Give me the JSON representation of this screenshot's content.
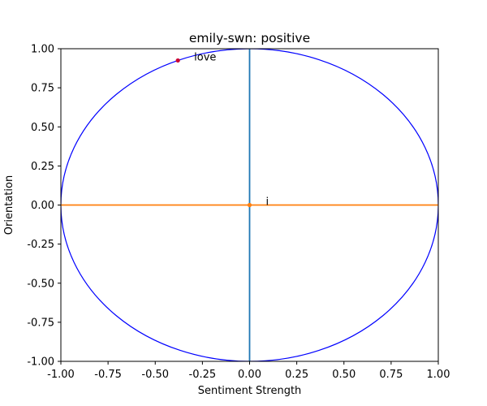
{
  "chart_data": {
    "type": "scatter",
    "title": "emily-swn: positive",
    "xlabel": "Sentiment Strength",
    "ylabel": "Orientation",
    "xlim": [
      -1.0,
      1.0
    ],
    "ylim": [
      -1.0,
      1.0
    ],
    "xticks": [
      "-1.00",
      "-0.75",
      "-0.50",
      "-0.25",
      "0.00",
      "0.25",
      "0.50",
      "0.75",
      "1.00"
    ],
    "yticks": [
      "-1.00",
      "-0.75",
      "-0.50",
      "-0.25",
      "0.00",
      "0.25",
      "0.50",
      "0.75",
      "1.00"
    ],
    "unit_circle": {
      "center": [
        0,
        0
      ],
      "radius": 1,
      "color": "#0000ff"
    },
    "reference_lines": [
      {
        "orientation": "vertical",
        "x": 0,
        "color": "#1f77b4"
      },
      {
        "orientation": "horizontal",
        "y": 0,
        "color": "#ff7f0e"
      }
    ],
    "points": [
      {
        "label": "love",
        "x": -0.38,
        "y": 0.925,
        "color": "#cc0033"
      },
      {
        "label": "i",
        "x": 0.0,
        "y": 0.0,
        "color": "#ff7f0e"
      }
    ],
    "grid": false,
    "legend": "none"
  }
}
